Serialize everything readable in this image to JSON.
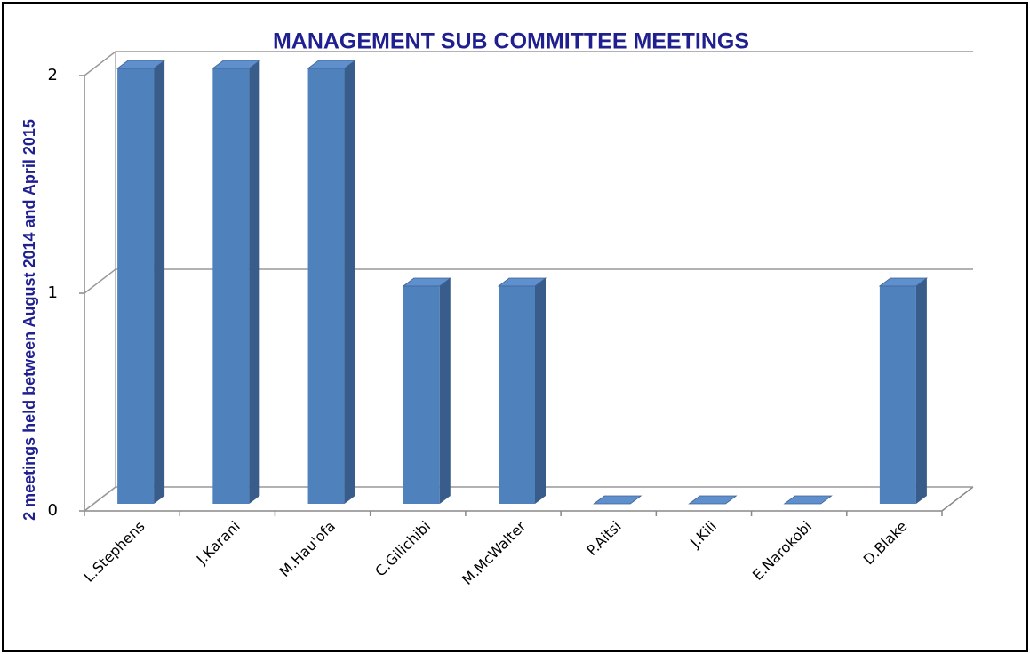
{
  "chart_data": {
    "type": "bar",
    "title": "MANAGEMENT SUB COMMITTEE MEETINGS",
    "y_label": "2 meetings held between August 2014 and April 2015",
    "categories": [
      "L.Stephens",
      "J.Karani",
      "M.Hau'ofa",
      "C.Gilichibi",
      "M.McWalter",
      "P.Aitsi",
      "J.Kili",
      "E.Narokobi",
      "D.Blake"
    ],
    "values": [
      2,
      2,
      2,
      1,
      1,
      0,
      0,
      0,
      1
    ],
    "color": "#4f81bd",
    "ylim": [
      0,
      2
    ],
    "yticks": [
      0,
      1,
      2
    ],
    "grid": true
  }
}
